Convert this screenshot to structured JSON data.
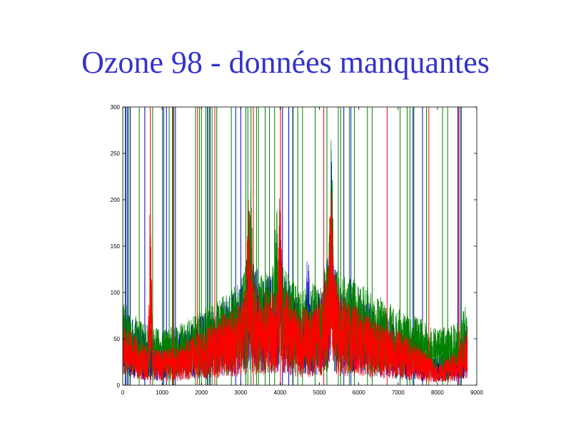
{
  "slide": {
    "title": "Ozone 98 - données manquantes"
  },
  "chart_data": {
    "type": "line",
    "title": "",
    "xlabel": "",
    "ylabel": "",
    "xlim": [
      0,
      9000
    ],
    "ylim": [
      0,
      300
    ],
    "xticks": [
      0,
      1000,
      2000,
      3000,
      4000,
      5000,
      6000,
      7000,
      8000,
      9000
    ],
    "yticks": [
      0,
      50,
      100,
      150,
      200,
      250,
      300
    ],
    "grid": false,
    "legend": "none",
    "n_points": 8760,
    "series": [
      {
        "color": "#0000cc",
        "profile_x": [
          0,
          500,
          1000,
          1500,
          2000,
          2500,
          3000,
          3200,
          3500,
          4000,
          4500,
          5000,
          5300,
          5500,
          6000,
          6500,
          7000,
          7500,
          8000,
          8500,
          8760
        ],
        "profile_y": [
          55,
          40,
          30,
          40,
          50,
          60,
          70,
          95,
          80,
          85,
          60,
          70,
          105,
          70,
          65,
          55,
          45,
          35,
          20,
          30,
          50
        ],
        "peaks": [
          [
            3200,
            130
          ],
          [
            4000,
            130
          ],
          [
            5300,
            180
          ],
          [
            4700,
            110
          ]
        ],
        "missing_x": [
          80,
          120,
          190,
          560,
          1040,
          1110,
          1340,
          2150,
          2220,
          2870,
          3000,
          4060,
          4220,
          4330,
          5620,
          5800,
          7380,
          7620,
          8520,
          8580
        ]
      },
      {
        "color": "#008000",
        "profile_x": [
          0,
          500,
          1000,
          1500,
          2000,
          2500,
          3000,
          3200,
          3500,
          4000,
          4500,
          5000,
          5300,
          5500,
          6000,
          6500,
          7000,
          7500,
          8000,
          8500,
          8760
        ],
        "profile_y": [
          60,
          45,
          40,
          45,
          55,
          65,
          75,
          100,
          80,
          90,
          70,
          75,
          105,
          80,
          75,
          65,
          55,
          50,
          40,
          45,
          60
        ],
        "peaks": [
          [
            3250,
            170
          ],
          [
            3900,
            150
          ],
          [
            5300,
            195
          ]
        ],
        "missing_x": [
          60,
          150,
          420,
          760,
          1010,
          1180,
          1260,
          1300,
          1850,
          1950,
          2000,
          2110,
          2160,
          2200,
          2270,
          2390,
          2760,
          3130,
          3180,
          3260,
          3400,
          3450,
          3620,
          3730,
          3860,
          4320,
          4450,
          4570,
          4890,
          5190,
          5480,
          5540,
          5760,
          5890,
          6220,
          6340,
          7050,
          7230,
          7300,
          7400,
          7720,
          8130,
          8260,
          8610
        ]
      },
      {
        "color": "#ff0000",
        "profile_x": [
          0,
          500,
          1000,
          1500,
          2000,
          2500,
          3000,
          3200,
          3500,
          4000,
          4500,
          5000,
          5300,
          5500,
          6000,
          6500,
          7000,
          7500,
          8000,
          8500,
          8760
        ],
        "profile_y": [
          45,
          30,
          25,
          30,
          40,
          50,
          60,
          85,
          65,
          75,
          55,
          60,
          95,
          65,
          55,
          45,
          40,
          30,
          15,
          25,
          45
        ],
        "peaks": [
          [
            3200,
            150
          ],
          [
            4000,
            160
          ],
          [
            5300,
            175
          ],
          [
            700,
            150
          ]
        ],
        "missing_x": [
          700,
          1280,
          1900,
          2340,
          3320,
          4010,
          5110,
          6720,
          7780,
          8540
        ]
      }
    ]
  }
}
